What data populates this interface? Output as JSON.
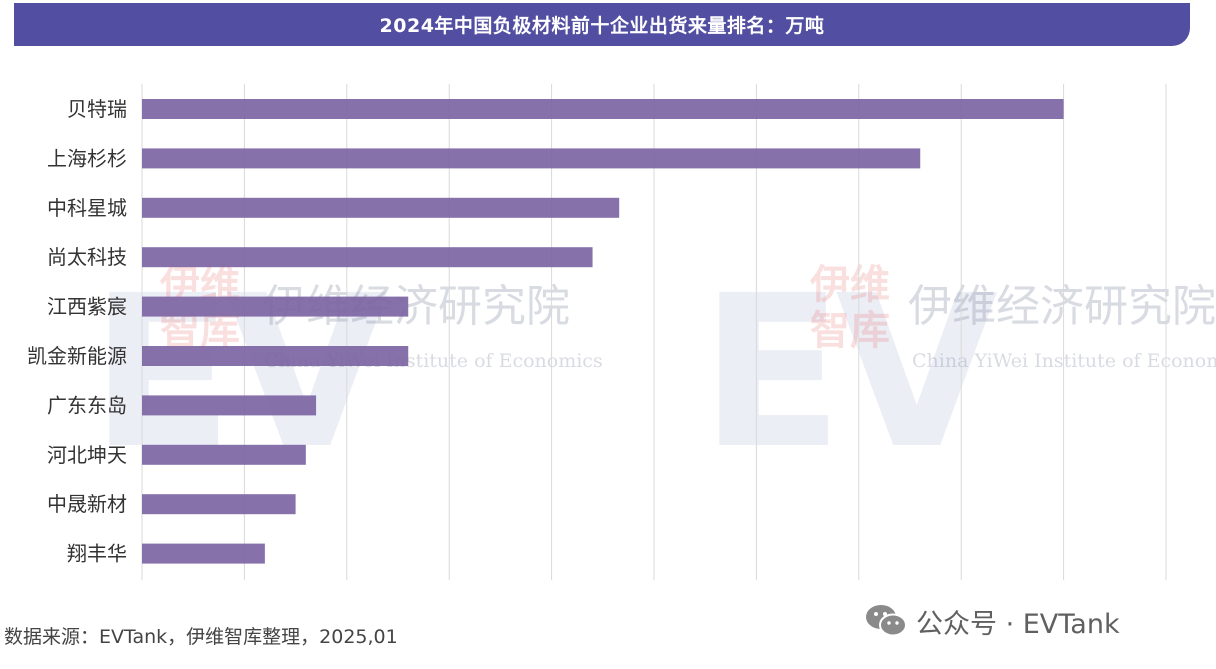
{
  "chart_data": {
    "type": "bar",
    "orientation": "horizontal",
    "title": "2024年中国负极材料前十企业出货来量排名：万吨",
    "categories": [
      "贝特瑞",
      "上海杉杉",
      "中科星城",
      "尚太科技",
      "江西紫宸",
      "凯金新能源",
      "广东东岛",
      "河北坤天",
      "中晟新材",
      "翔丰华"
    ],
    "values": [
      45,
      38,
      23.3,
      22,
      13,
      13,
      8.5,
      8,
      7.5,
      6
    ],
    "xlim": [
      0,
      50
    ],
    "x_gridline_step": 5,
    "grid": true,
    "bar_color": "#7d65a3",
    "legend": "none"
  },
  "source_text": "数据来源：EVTank，伊维智库整理，2025,01",
  "watermarks": {
    "cn_name": "伊维经济研究院",
    "en_name": "China YiWei Institute of Economics",
    "logo_cn_top": "伊维",
    "logo_cn_bottom": "智库",
    "brand": "EVTank"
  },
  "wechat_badge": "公众号 · EVTank",
  "colors": {
    "title_bar": "#524ea1",
    "bar": "#7d65a3",
    "gridline": "#d9d9d9"
  }
}
